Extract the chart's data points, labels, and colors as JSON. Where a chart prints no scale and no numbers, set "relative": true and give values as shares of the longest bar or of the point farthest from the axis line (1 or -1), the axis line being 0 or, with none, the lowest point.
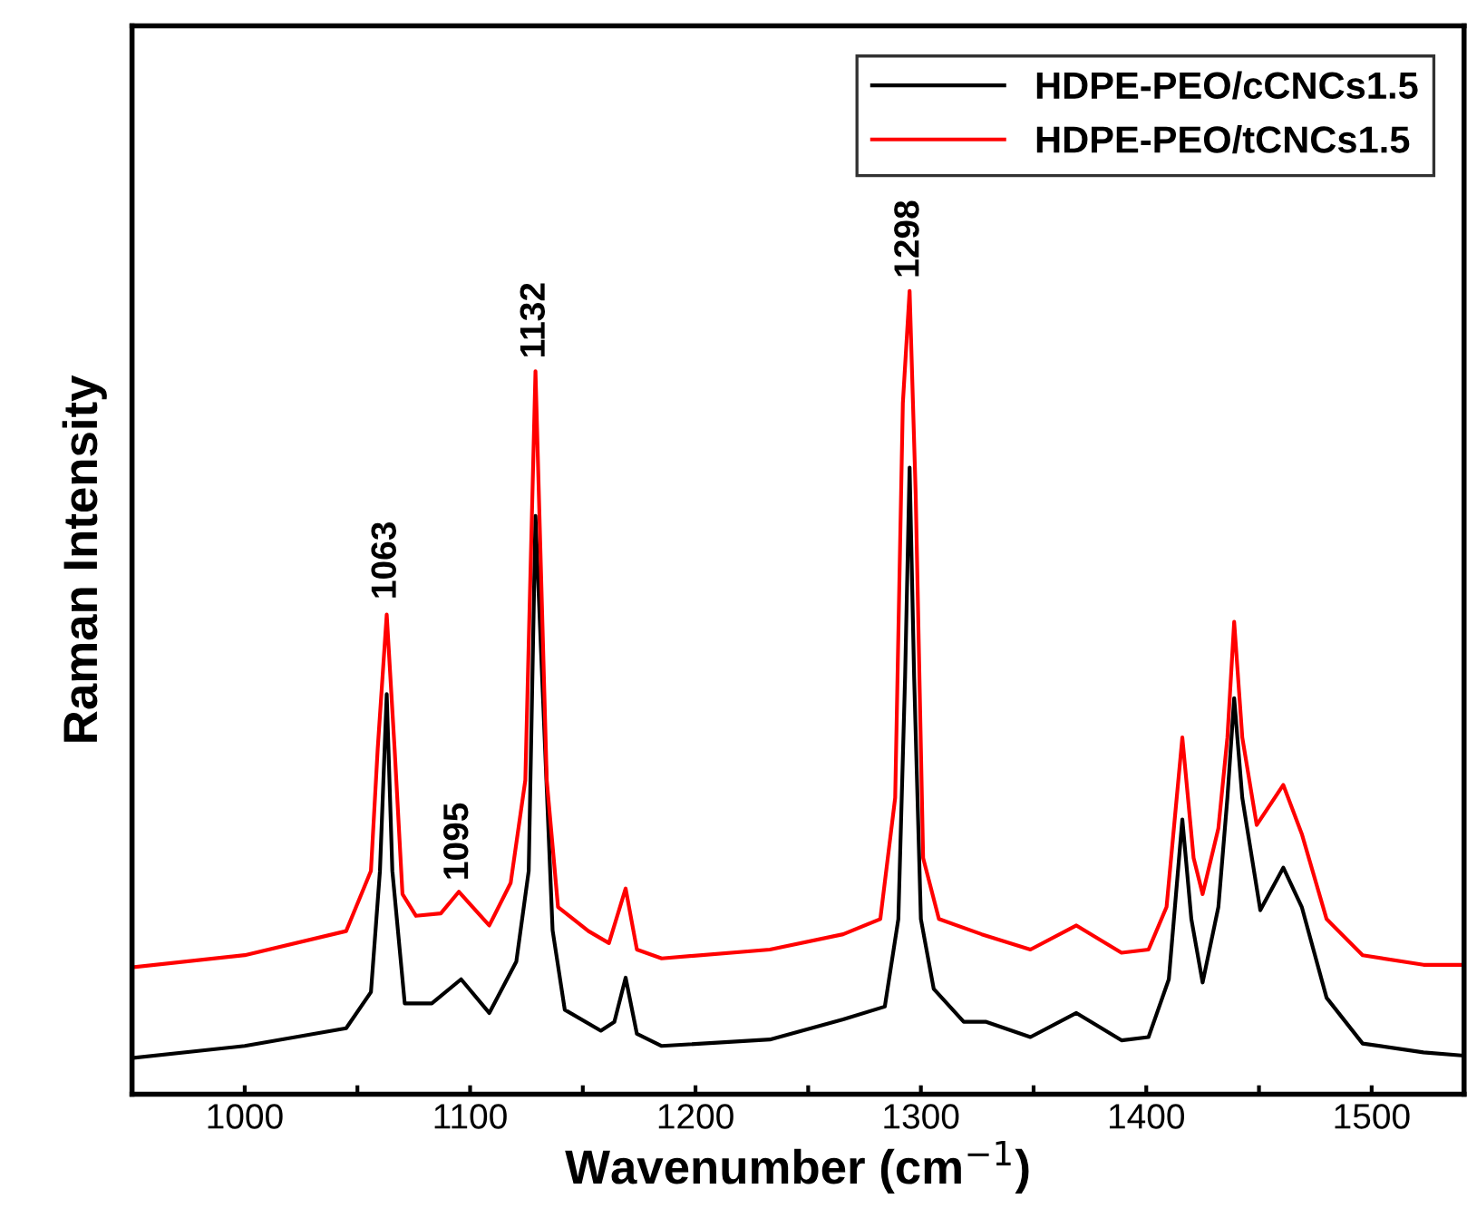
{
  "chart_data": {
    "type": "line",
    "relative": true,
    "xlabel": "Wavenumber (cm$^{−1}$)",
    "ylabel": "Raman Intensity",
    "xlim": [
      950,
      1541
    ],
    "xticks": [
      {
        "value": 950,
        "label": null
      },
      1000,
      {
        "value": 1050,
        "label": null
      },
      1100,
      {
        "value": 1150,
        "label": null
      },
      1200,
      {
        "value": 1250,
        "label": null
      },
      1300,
      {
        "value": 1350,
        "label": null
      },
      1400,
      {
        "value": 1450,
        "label": null
      },
      1500
    ],
    "tick_labels": "x",
    "legend": "top right",
    "grid": false,
    "marker": "none",
    "line_style": "solid",
    "annotations": [
      {
        "text": "1063",
        "x": 1063,
        "y": 0.6
      },
      {
        "text": "1095",
        "x": 1095,
        "y": 0.25
      },
      {
        "text": "1132",
        "x": 1129,
        "y": 0.9
      },
      {
        "text": "1298",
        "x": 1295,
        "y": 1.0
      }
    ],
    "series": [
      {
        "name": "HDPE-PEO/cCNCs1.5",
        "color": "#000000",
        "x": [
          950,
          1000,
          1045,
          1056,
          1060,
          1063,
          1065.5,
          1071,
          1083,
          1096,
          1108.5,
          1120.5,
          1126,
          1129,
          1136.6,
          1142,
          1158,
          1164,
          1169,
          1174,
          1185,
          1233,
          1265.5,
          1284,
          1290,
          1293,
          1295,
          1297,
          1300,
          1305.7,
          1319,
          1329,
          1348.6,
          1369,
          1389,
          1401,
          1410,
          1416,
          1420,
          1425,
          1432,
          1436,
          1439,
          1442.6,
          1450.6,
          1460.8,
          1469,
          1480,
          1496,
          1523,
          1540.5
        ],
        "values": [
          0.045,
          0.06,
          0.082,
          0.127,
          0.278,
          0.498,
          0.278,
          0.113,
          0.113,
          0.143,
          0.101,
          0.165,
          0.278,
          0.72,
          0.204,
          0.105,
          0.079,
          0.09,
          0.145,
          0.075,
          0.06,
          0.068,
          0.093,
          0.109,
          0.218,
          0.52,
          0.78,
          0.52,
          0.218,
          0.131,
          0.09,
          0.09,
          0.071,
          0.101,
          0.067,
          0.071,
          0.143,
          0.342,
          0.218,
          0.139,
          0.233,
          0.369,
          0.493,
          0.369,
          0.229,
          0.282,
          0.233,
          0.12,
          0.063,
          0.052,
          0.048
        ]
      },
      {
        "name": "HDPE-PEO/tCNCs1.5",
        "color": "#ff0000",
        "x": [
          950,
          1000,
          1045,
          1056,
          1059,
          1063,
          1066.5,
          1070,
          1076,
          1087,
          1095,
          1108.5,
          1118,
          1124.5,
          1129,
          1134,
          1139,
          1152.5,
          1161.6,
          1169,
          1174,
          1185,
          1233,
          1265.5,
          1282,
          1288.6,
          1292,
          1295,
          1297.7,
          1301,
          1308,
          1327,
          1348.6,
          1369,
          1389,
          1401,
          1409,
          1416,
          1421,
          1425,
          1432,
          1436,
          1439,
          1442.6,
          1449,
          1460.8,
          1469,
          1480,
          1496,
          1523,
          1540.5
        ],
        "values": [
          0.158,
          0.173,
          0.203,
          0.278,
          0.43,
          0.597,
          0.43,
          0.249,
          0.222,
          0.225,
          0.252,
          0.21,
          0.263,
          0.391,
          0.9,
          0.391,
          0.233,
          0.203,
          0.188,
          0.256,
          0.18,
          0.169,
          0.18,
          0.199,
          0.218,
          0.369,
          0.86,
          1.0,
          0.747,
          0.294,
          0.218,
          0.199,
          0.18,
          0.21,
          0.176,
          0.18,
          0.233,
          0.444,
          0.294,
          0.249,
          0.331,
          0.444,
          0.588,
          0.444,
          0.335,
          0.385,
          0.324,
          0.218,
          0.173,
          0.161,
          0.161
        ]
      }
    ]
  }
}
